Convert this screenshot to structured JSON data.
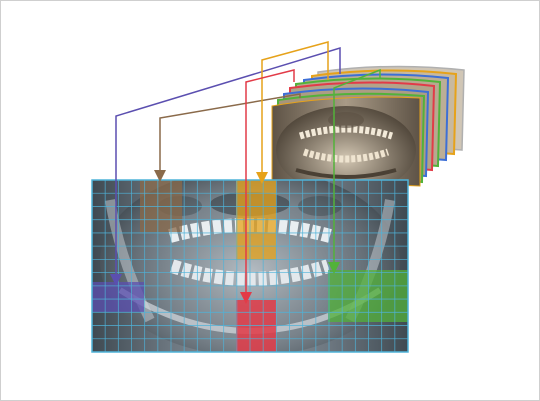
{
  "figure": {
    "accent_colors": {
      "grid": "#4fb3d9",
      "purple": "#5b4fb0",
      "brown": "#8a6a4a",
      "orange": "#e6a21a",
      "red": "#e23b48",
      "green": "#52b23a",
      "blue": "#3d6fd6"
    },
    "grid": {
      "columns": 24,
      "rows": 13
    },
    "highlighted_regions": [
      {
        "name": "brown-region",
        "color": "#8a6a4a"
      },
      {
        "name": "orange-region",
        "color": "#e6a21a"
      },
      {
        "name": "purple-region",
        "color": "#5b4fb0"
      },
      {
        "name": "red-region",
        "color": "#e23b48"
      },
      {
        "name": "green-region",
        "color": "#52b23a"
      }
    ],
    "stack_frame_colors": [
      "#e6a21a",
      "#3d6fd6",
      "#e23b48",
      "#52b23a",
      "#3d6fd6",
      "#e6a21a",
      "#b0b0b0"
    ]
  }
}
